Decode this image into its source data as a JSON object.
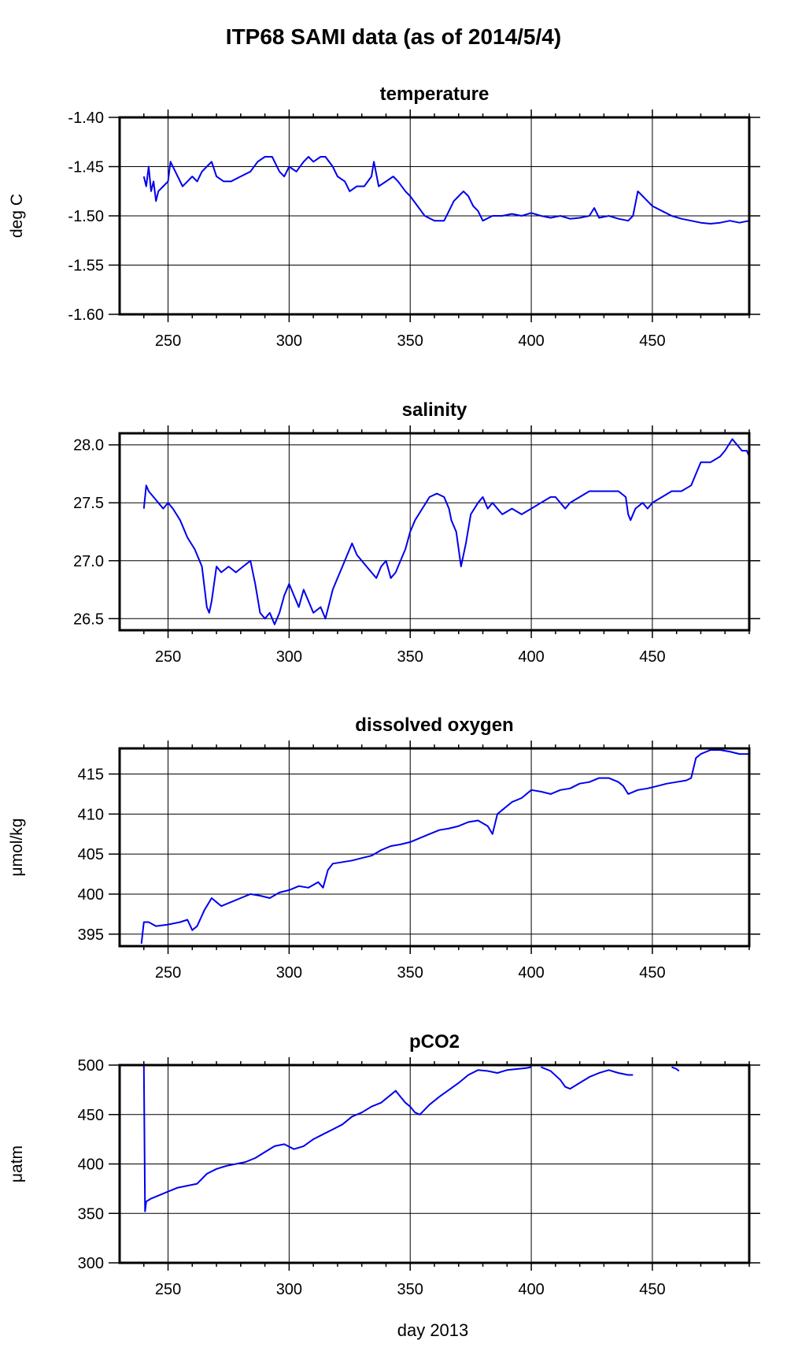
{
  "figure_title": "ITP68 SAMI data (as of 2014/5/4)",
  "xlabel": "day 2013",
  "colors": {
    "series": "#0000ee",
    "axes": "#000000",
    "grid": "#000000"
  },
  "chart_data": [
    {
      "type": "line",
      "title": "temperature",
      "ylabel": "deg C",
      "xlim": [
        230,
        490
      ],
      "ylim": [
        -1.6,
        -1.4
      ],
      "xticks": [
        250,
        300,
        350,
        400,
        450
      ],
      "xtick_labels": [
        "250",
        "300",
        "350",
        "400",
        "450"
      ],
      "yticks": [
        -1.6,
        -1.55,
        -1.5,
        -1.45,
        -1.4
      ],
      "ytick_labels": [
        "-1.60",
        "-1.55",
        "-1.50",
        "-1.45",
        "-1.40"
      ],
      "grid": true,
      "series": [
        {
          "x": [
            240,
            241,
            242,
            243,
            244,
            245,
            246,
            248,
            250,
            251,
            253,
            256,
            258,
            260,
            262,
            264,
            266,
            268,
            270,
            273,
            276,
            280,
            284,
            287,
            290,
            293,
            296,
            298,
            300,
            303,
            306,
            308,
            310,
            313,
            315,
            318,
            320,
            323,
            325,
            328,
            331,
            334,
            335,
            337,
            340,
            343,
            345,
            348,
            350,
            353,
            356,
            360,
            364,
            366,
            368,
            370,
            372,
            374,
            376,
            378,
            380,
            384,
            388,
            392,
            396,
            400,
            404,
            408,
            412,
            416,
            420,
            424,
            426,
            428,
            432,
            436,
            440,
            442,
            444,
            446,
            448,
            450,
            454,
            458,
            462,
            466,
            470,
            474,
            478,
            482,
            486,
            490
          ],
          "y": [
            -1.46,
            -1.47,
            -1.45,
            -1.475,
            -1.465,
            -1.485,
            -1.475,
            -1.47,
            -1.465,
            -1.445,
            -1.455,
            -1.47,
            -1.465,
            -1.46,
            -1.465,
            -1.455,
            -1.45,
            -1.445,
            -1.46,
            -1.465,
            -1.465,
            -1.46,
            -1.455,
            -1.445,
            -1.44,
            -1.44,
            -1.455,
            -1.46,
            -1.45,
            -1.455,
            -1.445,
            -1.44,
            -1.445,
            -1.44,
            -1.44,
            -1.45,
            -1.46,
            -1.465,
            -1.475,
            -1.47,
            -1.47,
            -1.46,
            -1.445,
            -1.47,
            -1.465,
            -1.46,
            -1.465,
            -1.475,
            -1.48,
            -1.49,
            -1.5,
            -1.505,
            -1.505,
            -1.495,
            -1.485,
            -1.48,
            -1.475,
            -1.48,
            -1.49,
            -1.495,
            -1.505,
            -1.5,
            -1.5,
            -1.498,
            -1.5,
            -1.497,
            -1.5,
            -1.502,
            -1.5,
            -1.503,
            -1.502,
            -1.5,
            -1.492,
            -1.502,
            -1.5,
            -1.503,
            -1.505,
            -1.5,
            -1.475,
            -1.48,
            -1.485,
            -1.49,
            -1.495,
            -1.5,
            -1.503,
            -1.505,
            -1.507,
            -1.508,
            -1.507,
            -1.505,
            -1.507,
            -1.505
          ]
        }
      ]
    },
    {
      "type": "line",
      "title": "salinity",
      "ylabel": "",
      "xlim": [
        230,
        490
      ],
      "ylim": [
        26.4,
        28.1
      ],
      "xticks": [
        250,
        300,
        350,
        400,
        450
      ],
      "xtick_labels": [
        "250",
        "300",
        "350",
        "400",
        "450"
      ],
      "yticks": [
        26.5,
        27.0,
        27.5,
        28.0
      ],
      "ytick_labels": [
        "26.5",
        "27.0",
        "27.5",
        "28.0"
      ],
      "grid": true,
      "series": [
        {
          "x": [
            240,
            241,
            242,
            244,
            246,
            248,
            250,
            252,
            255,
            258,
            261,
            264,
            266,
            267,
            268,
            270,
            272,
            275,
            278,
            281,
            284,
            286,
            288,
            290,
            292,
            294,
            296,
            298,
            300,
            302,
            304,
            306,
            308,
            310,
            313,
            315,
            318,
            320,
            322,
            324,
            326,
            328,
            330,
            332,
            334,
            336,
            338,
            340,
            342,
            344,
            346,
            348,
            350,
            352,
            355,
            358,
            361,
            364,
            366,
            367,
            369,
            370,
            371,
            373,
            375,
            378,
            380,
            382,
            384,
            386,
            388,
            392,
            396,
            400,
            404,
            408,
            410,
            412,
            414,
            416,
            420,
            424,
            428,
            432,
            436,
            439,
            440,
            441,
            443,
            446,
            448,
            450,
            454,
            458,
            462,
            466,
            468,
            469,
            470,
            474,
            478,
            480,
            483,
            485,
            487,
            489,
            490
          ],
          "y": [
            27.45,
            27.65,
            27.6,
            27.55,
            27.5,
            27.45,
            27.5,
            27.45,
            27.35,
            27.2,
            27.1,
            26.95,
            26.6,
            26.55,
            26.65,
            26.95,
            26.9,
            26.95,
            26.9,
            26.95,
            27.0,
            26.8,
            26.55,
            26.5,
            26.55,
            26.45,
            26.55,
            26.7,
            26.8,
            26.7,
            26.6,
            26.75,
            26.65,
            26.55,
            26.6,
            26.5,
            26.75,
            26.85,
            26.95,
            27.05,
            27.15,
            27.05,
            27.0,
            26.95,
            26.9,
            26.85,
            26.95,
            27.0,
            26.85,
            26.9,
            27.0,
            27.1,
            27.25,
            27.35,
            27.45,
            27.55,
            27.58,
            27.55,
            27.45,
            27.35,
            27.25,
            27.1,
            26.95,
            27.15,
            27.4,
            27.5,
            27.55,
            27.45,
            27.5,
            27.45,
            27.4,
            27.45,
            27.4,
            27.45,
            27.5,
            27.55,
            27.55,
            27.5,
            27.45,
            27.5,
            27.55,
            27.6,
            27.6,
            27.6,
            27.6,
            27.55,
            27.4,
            27.35,
            27.45,
            27.5,
            27.45,
            27.5,
            27.55,
            27.6,
            27.6,
            27.65,
            27.75,
            27.8,
            27.85,
            27.85,
            27.9,
            27.95,
            28.05,
            28.0,
            27.95,
            27.95,
            27.9
          ]
        }
      ]
    },
    {
      "type": "line",
      "title": "dissolved oxygen",
      "ylabel": "μmol/kg",
      "xlim": [
        230,
        490
      ],
      "ylim": [
        393.5,
        418.2
      ],
      "xticks": [
        250,
        300,
        350,
        400,
        450
      ],
      "xtick_labels": [
        "250",
        "300",
        "350",
        "400",
        "450"
      ],
      "yticks": [
        395,
        400,
        405,
        410,
        415
      ],
      "ytick_labels": [
        "395",
        "400",
        "405",
        "410",
        "415"
      ],
      "grid": true,
      "series": [
        {
          "x": [
            239,
            240,
            242,
            245,
            250,
            255,
            258,
            260,
            262,
            265,
            268,
            272,
            276,
            280,
            284,
            288,
            292,
            296,
            300,
            304,
            308,
            312,
            314,
            316,
            318,
            322,
            326,
            330,
            334,
            338,
            342,
            346,
            350,
            354,
            358,
            362,
            366,
            370,
            374,
            378,
            382,
            384,
            386,
            388,
            392,
            396,
            400,
            404,
            408,
            412,
            416,
            420,
            424,
            428,
            432,
            436,
            438,
            440,
            444,
            448,
            452,
            456,
            460,
            464,
            466,
            468,
            470,
            474,
            478,
            482,
            486,
            490
          ],
          "y": [
            393.8,
            396.5,
            396.5,
            396.0,
            396.2,
            396.5,
            396.8,
            395.5,
            396.0,
            398.0,
            399.5,
            398.5,
            399.0,
            399.5,
            400.0,
            399.8,
            399.5,
            400.2,
            400.5,
            401.0,
            400.8,
            401.5,
            400.8,
            403.0,
            403.8,
            404.0,
            404.2,
            404.5,
            404.8,
            405.5,
            406.0,
            406.2,
            406.5,
            407.0,
            407.5,
            408.0,
            408.2,
            408.5,
            409.0,
            409.2,
            408.5,
            407.5,
            410.0,
            410.5,
            411.5,
            412.0,
            413.0,
            412.8,
            412.5,
            413.0,
            413.2,
            413.8,
            414.0,
            414.5,
            414.5,
            414.0,
            413.5,
            412.5,
            413.0,
            413.2,
            413.5,
            413.8,
            414.0,
            414.2,
            414.5,
            417.0,
            417.5,
            418.0,
            418.0,
            417.8,
            417.5,
            417.5
          ]
        }
      ]
    },
    {
      "type": "line",
      "title": "pCO2",
      "ylabel": "μatm",
      "xlim": [
        230,
        490
      ],
      "ylim": [
        300,
        500
      ],
      "xticks": [
        250,
        300,
        350,
        400,
        450
      ],
      "xtick_labels": [
        "250",
        "300",
        "350",
        "400",
        "450"
      ],
      "yticks": [
        300,
        350,
        400,
        450,
        500
      ],
      "ytick_labels": [
        "300",
        "350",
        "400",
        "450",
        "500"
      ],
      "grid": true,
      "series": [
        {
          "x": [
            240,
            240.5,
            241,
            243,
            246,
            250,
            254,
            258,
            262,
            266,
            270,
            274,
            278,
            282,
            286,
            290,
            294,
            298,
            302,
            306,
            310,
            314,
            318,
            322,
            326,
            330,
            334,
            338,
            342,
            344,
            346,
            348,
            350,
            352,
            354,
            358,
            362,
            366,
            370,
            374,
            378,
            382,
            386,
            390,
            394,
            398,
            400,
            null,
            404,
            408,
            412,
            414,
            416,
            420,
            424,
            428,
            432,
            436,
            440,
            442,
            null,
            458,
            460,
            461
          ],
          "y": [
            500,
            352,
            362,
            365,
            368,
            372,
            376,
            378,
            380,
            390,
            395,
            398,
            400,
            402,
            406,
            412,
            418,
            420,
            415,
            418,
            425,
            430,
            435,
            440,
            448,
            452,
            458,
            462,
            470,
            474,
            468,
            462,
            458,
            452,
            450,
            460,
            468,
            475,
            482,
            490,
            495,
            494,
            492,
            495,
            496,
            497,
            498,
            null,
            498,
            494,
            485,
            478,
            476,
            482,
            488,
            492,
            495,
            492,
            490,
            490,
            null,
            498,
            496,
            494
          ]
        }
      ]
    }
  ]
}
